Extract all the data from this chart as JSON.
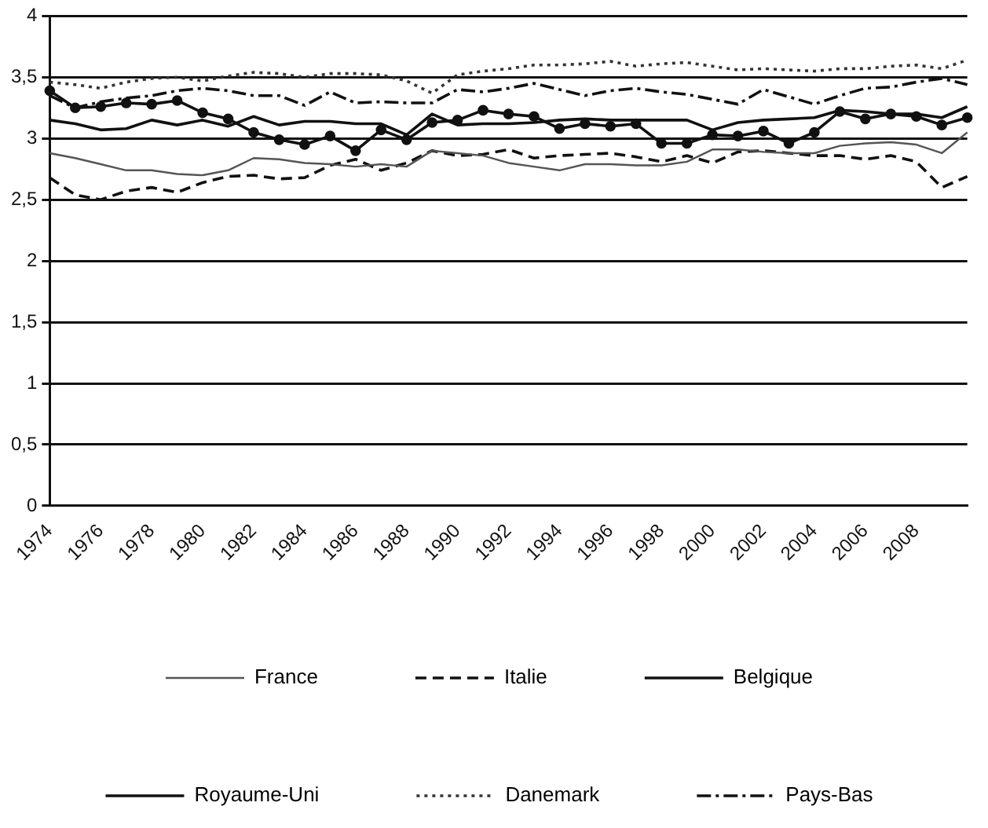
{
  "chart_data": {
    "type": "line",
    "categories": [
      "1974",
      null,
      "1976",
      null,
      "1978",
      null,
      "1980",
      null,
      "1982",
      null,
      "1984",
      null,
      "1986",
      null,
      "1988",
      null,
      "1990",
      null,
      "1992",
      null,
      "1994",
      null,
      "1996",
      null,
      "1998",
      null,
      "2000",
      null,
      "2002",
      null,
      "2004",
      null,
      "2006",
      null,
      "2008",
      null,
      null
    ],
    "ylim": [
      0,
      4
    ],
    "yticks": [
      0,
      {
        "value": 0.5,
        "label": "0,5"
      },
      1,
      {
        "value": 1.5,
        "label": "1,5"
      },
      2,
      {
        "value": 2.5,
        "label": "2,5"
      },
      3,
      {
        "value": 3.5,
        "label": "3,5"
      },
      4
    ],
    "grid": "y",
    "legend": "bottom",
    "marker": "none",
    "series": [
      {
        "name": "France",
        "color": "#555555",
        "line_style": "solid",
        "values": [
          2.88,
          2.84,
          2.79,
          2.74,
          2.74,
          2.71,
          2.7,
          2.74,
          2.84,
          2.83,
          2.8,
          2.79,
          2.77,
          2.79,
          2.77,
          2.9,
          2.88,
          2.86,
          2.8,
          2.77,
          2.74,
          2.79,
          2.79,
          2.78,
          2.78,
          2.81,
          2.91,
          2.91,
          2.89,
          2.88,
          2.88,
          2.94,
          2.96,
          2.97,
          2.95,
          2.88,
          3.05
        ]
      },
      {
        "name": "Italie",
        "color": "#111111",
        "line_style": "dashed",
        "values": [
          2.68,
          2.54,
          2.5,
          2.57,
          2.6,
          2.56,
          2.64,
          2.69,
          2.7,
          2.67,
          2.68,
          2.78,
          2.83,
          2.74,
          2.8,
          2.9,
          2.86,
          2.87,
          2.91,
          2.84,
          2.86,
          2.87,
          2.88,
          2.85,
          2.81,
          2.86,
          2.8,
          2.89,
          2.9,
          2.88,
          2.86,
          2.86,
          2.83,
          2.86,
          2.81,
          2.6,
          2.69
        ]
      },
      {
        "name": "Belgique",
        "color": "#111111",
        "line_style": "solid",
        "marker": "circle",
        "values": [
          3.39,
          3.25,
          3.26,
          3.29,
          3.28,
          3.31,
          3.21,
          3.16,
          3.05,
          2.99,
          2.95,
          3.02,
          2.9,
          3.07,
          2.99,
          3.13,
          3.15,
          3.23,
          3.2,
          3.18,
          3.08,
          3.12,
          3.1,
          3.12,
          2.96,
          2.96,
          3.03,
          3.02,
          3.06,
          2.96,
          3.05,
          3.22,
          3.16,
          3.2,
          3.18,
          3.11,
          3.17
        ]
      },
      {
        "name": "Royaume-Uni",
        "color": "#111111",
        "line_style": "solid",
        "values": [
          3.15,
          3.12,
          3.07,
          3.08,
          3.15,
          3.11,
          3.15,
          3.1,
          3.18,
          3.11,
          3.14,
          3.14,
          3.12,
          3.12,
          3.03,
          3.2,
          3.11,
          3.12,
          3.12,
          3.13,
          3.15,
          3.16,
          3.15,
          3.15,
          3.15,
          3.15,
          3.07,
          3.13,
          3.15,
          3.16,
          3.17,
          3.23,
          3.22,
          3.2,
          3.2,
          3.17,
          3.26
        ]
      },
      {
        "name": "Danemark",
        "color": "#333333",
        "line_style": "dotted",
        "values": [
          3.46,
          3.44,
          3.41,
          3.46,
          3.49,
          3.5,
          3.47,
          3.51,
          3.54,
          3.53,
          3.5,
          3.53,
          3.53,
          3.52,
          3.47,
          3.37,
          3.52,
          3.55,
          3.57,
          3.6,
          3.6,
          3.61,
          3.63,
          3.59,
          3.61,
          3.62,
          3.59,
          3.56,
          3.57,
          3.56,
          3.55,
          3.57,
          3.57,
          3.59,
          3.6,
          3.57,
          3.64
        ]
      },
      {
        "name": "Pays-Bas",
        "color": "#111111",
        "line_style": "dashdot",
        "values": [
          3.35,
          3.25,
          3.3,
          3.33,
          3.35,
          3.39,
          3.41,
          3.39,
          3.35,
          3.35,
          3.27,
          3.38,
          3.29,
          3.3,
          3.29,
          3.29,
          3.4,
          3.38,
          3.41,
          3.45,
          3.4,
          3.35,
          3.39,
          3.41,
          3.38,
          3.36,
          3.32,
          3.28,
          3.4,
          3.34,
          3.28,
          3.35,
          3.41,
          3.42,
          3.46,
          3.49,
          3.44
        ]
      }
    ]
  }
}
